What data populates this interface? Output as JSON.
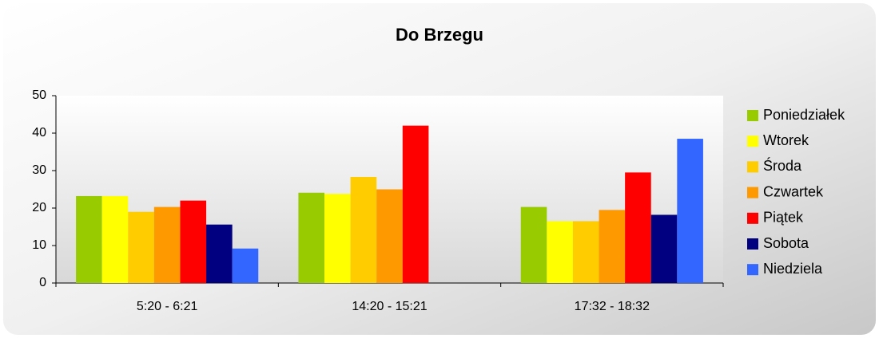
{
  "chart_data": {
    "type": "bar",
    "title": "Do Brzegu",
    "categories": [
      "5:20 - 6:21",
      "14:20 - 15:21",
      "17:32 - 18:32"
    ],
    "series": [
      {
        "name": "Poniedziałek",
        "color": "#99cc00",
        "values": [
          23.2,
          24.1,
          20.3
        ]
      },
      {
        "name": "Wtorek",
        "color": "#ffff00",
        "values": [
          23.2,
          23.8,
          16.5
        ]
      },
      {
        "name": "Środa",
        "color": "#ffcc00",
        "values": [
          19,
          28.3,
          16.5
        ]
      },
      {
        "name": "Czwartek",
        "color": "#ff9900",
        "values": [
          20.3,
          25,
          19.5
        ]
      },
      {
        "name": "Piątek",
        "color": "#ff0000",
        "values": [
          22,
          42,
          29.5
        ]
      },
      {
        "name": "Sobota",
        "color": "#000080",
        "values": [
          15.6,
          null,
          18.2
        ]
      },
      {
        "name": "Niedziela",
        "color": "#3366ff",
        "values": [
          9.2,
          null,
          38.5
        ]
      }
    ],
    "ylim": [
      0,
      50
    ],
    "yticks": [
      0,
      10,
      20,
      30,
      40,
      50
    ],
    "legend": "right"
  }
}
